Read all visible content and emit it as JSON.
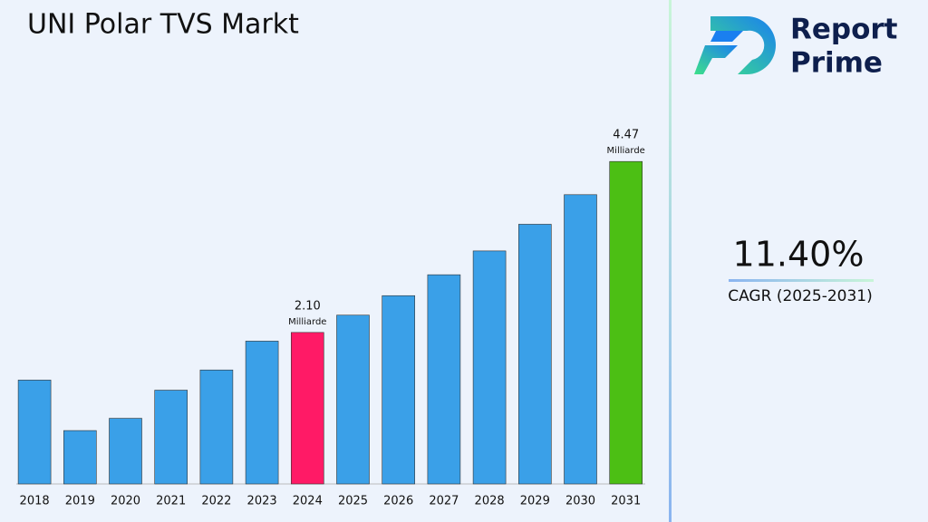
{
  "chart_data": {
    "type": "bar",
    "title": "UNI Polar TVS Markt",
    "categories": [
      "2018",
      "2019",
      "2020",
      "2021",
      "2022",
      "2023",
      "2024",
      "2025",
      "2026",
      "2027",
      "2028",
      "2029",
      "2030",
      "2031"
    ],
    "values": [
      1.44,
      0.74,
      0.91,
      1.3,
      1.58,
      1.98,
      2.1,
      2.34,
      2.61,
      2.9,
      3.23,
      3.6,
      4.01,
      4.47
    ],
    "value_labels": [
      null,
      null,
      null,
      null,
      null,
      null,
      "2.10",
      null,
      null,
      null,
      null,
      null,
      null,
      "4.47"
    ],
    "value_label_unit": "Milliarde",
    "bar_colors": [
      "#3aa0e8",
      "#3aa0e8",
      "#3aa0e8",
      "#3aa0e8",
      "#3aa0e8",
      "#3aa0e8",
      "#ff1a66",
      "#3aa0e8",
      "#3aa0e8",
      "#3aa0e8",
      "#3aa0e8",
      "#3aa0e8",
      "#3aa0e8",
      "#4cbf14"
    ],
    "ylim": [
      0,
      5
    ]
  },
  "logo": {
    "line1": "Report",
    "line2": "Prime"
  },
  "cagr": {
    "value": "11.40%",
    "label": "CAGR (2025-2031)"
  }
}
